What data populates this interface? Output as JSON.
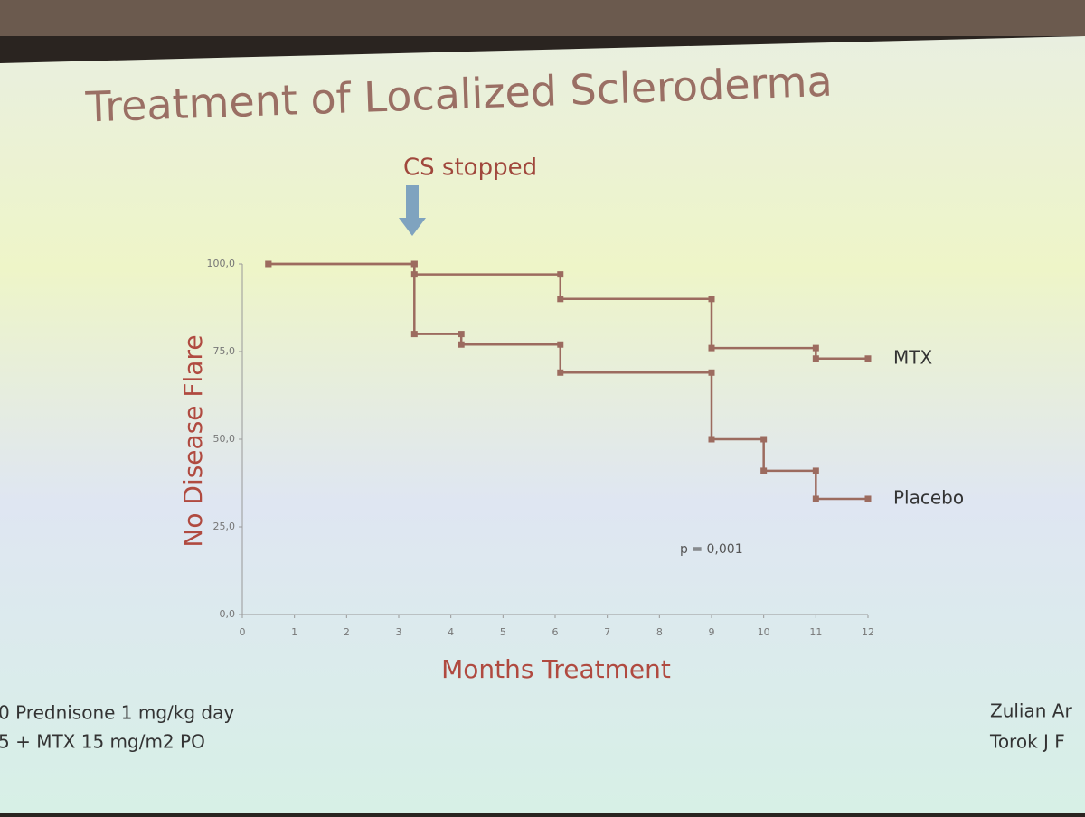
{
  "chart_data": {
    "type": "step-line",
    "title": "Treatment of Localized Scleroderma",
    "x_label": "Months Treatment",
    "y_label": "No Disease Flare",
    "annotations": [
      "CS stopped",
      "p = 0,001"
    ],
    "xlim": [
      0,
      12
    ],
    "xticks": [
      0,
      1,
      2,
      3,
      4,
      5,
      6,
      7,
      8,
      9,
      10,
      11,
      12
    ],
    "ylim": [
      0,
      100
    ],
    "yticks": [
      {
        "value": 0,
        "label": "0,0"
      },
      {
        "value": 25,
        "label": "25,0"
      },
      {
        "value": 50,
        "label": "50,0"
      },
      {
        "value": 75,
        "label": "75,0"
      },
      {
        "value": 100,
        "label": "100,0"
      }
    ],
    "series": [
      {
        "name": "MTX",
        "color": "#9c6b5f",
        "x": [
          0.5,
          3.3,
          3.3,
          6.1,
          6.1,
          9,
          9,
          11,
          11,
          12
        ],
        "values": [
          100,
          100,
          97,
          97,
          90,
          90,
          76,
          76,
          73,
          73
        ]
      },
      {
        "name": "Placebo",
        "color": "#9c6b5f",
        "x": [
          0.5,
          3.3,
          3.3,
          4.2,
          4.2,
          6.1,
          6.1,
          9,
          9,
          10,
          10,
          11,
          11,
          12
        ],
        "values": [
          100,
          100,
          80,
          80,
          77,
          77,
          69,
          69,
          50,
          50,
          41,
          41,
          33,
          33
        ]
      }
    ]
  },
  "footer": {
    "left": [
      "0 Prednisone 1 mg/kg day",
      "5 + MTX 15 mg/m2 PO"
    ],
    "right": [
      "Zulian Ar",
      "Torok J F"
    ]
  }
}
